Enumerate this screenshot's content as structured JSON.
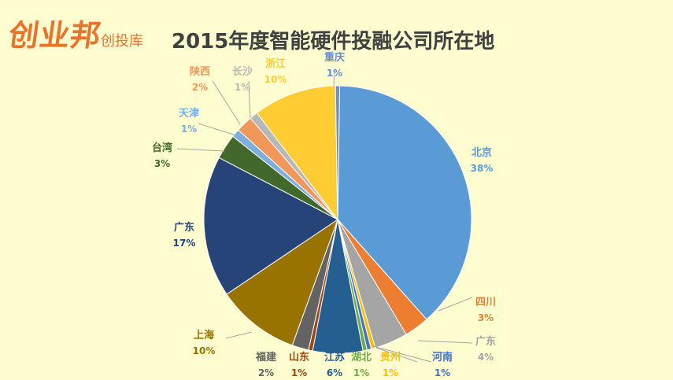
{
  "brand": {
    "logo_text": "创业邦",
    "sub_text": "创投库",
    "color": "#e8732a"
  },
  "chart_data": {
    "type": "pie",
    "title": "2015年度智能硬件投融公司所在地",
    "slices": [
      {
        "label": "北京",
        "value": 38,
        "display": "38%",
        "color": "#5b9bd5"
      },
      {
        "label": "四川",
        "value": 3,
        "display": "3%",
        "color": "#ed7d31"
      },
      {
        "label": "广东",
        "value": 4,
        "display": "4%",
        "color": "#a5a5a5"
      },
      {
        "label": "贵州",
        "value": 0.5,
        "display": "1%",
        "color": "#ffc000"
      },
      {
        "label": "河南",
        "value": 0.5,
        "display": "1%",
        "color": "#4472c4"
      },
      {
        "label": "湖北",
        "value": 0.5,
        "display": "1%",
        "color": "#70ad47"
      },
      {
        "label": "江苏",
        "value": 6,
        "display": "6%",
        "color": "#255e91"
      },
      {
        "label": "山东",
        "value": 0.5,
        "display": "1%",
        "color": "#9e480e"
      },
      {
        "label": "福建",
        "value": 2,
        "display": "2%",
        "color": "#636363"
      },
      {
        "label": "上海",
        "value": 10,
        "display": "10%",
        "color": "#997300"
      },
      {
        "label": "广东",
        "value": 17,
        "display": "17%",
        "color": "#264478"
      },
      {
        "label": "台湾",
        "value": 3,
        "display": "3%",
        "color": "#43682b"
      },
      {
        "label": "天津",
        "value": 1,
        "display": "1%",
        "color": "#7cafdd"
      },
      {
        "label": "陕西",
        "value": 2,
        "display": "2%",
        "color": "#f1975a"
      },
      {
        "label": "长沙",
        "value": 1,
        "display": "1%",
        "color": "#b7b7b7"
      },
      {
        "label": "浙江",
        "value": 10,
        "display": "10%",
        "color": "#ffcd33"
      },
      {
        "label": "重庆",
        "value": 0.5,
        "display": "1%",
        "color": "#698ed0"
      }
    ]
  }
}
